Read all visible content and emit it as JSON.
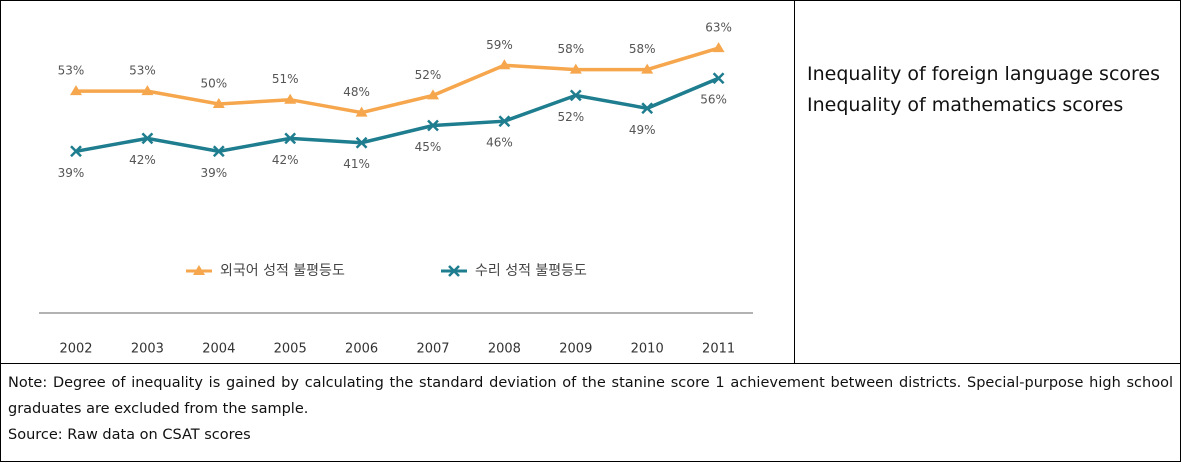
{
  "chart_data": {
    "type": "line",
    "categories": [
      "2002",
      "2003",
      "2004",
      "2005",
      "2006",
      "2007",
      "2008",
      "2009",
      "2010",
      "2011"
    ],
    "series": [
      {
        "name": "외국어 성적 불평등도",
        "color": "#f6a64c",
        "marker": "triangle",
        "values": [
          53,
          53,
          50,
          51,
          48,
          52,
          59,
          58,
          58,
          63
        ],
        "value_labels": [
          "53%",
          "53%",
          "50%",
          "51%",
          "48%",
          "52%",
          "59%",
          "58%",
          "58%",
          "63%"
        ]
      },
      {
        "name": "수리 성적 불평등도",
        "color": "#1e7d8e",
        "marker": "x",
        "values": [
          39,
          42,
          39,
          42,
          41,
          45,
          46,
          52,
          49,
          56
        ],
        "value_labels": [
          "39%",
          "42%",
          "39%",
          "42%",
          "41%",
          "45%",
          "46%",
          "52%",
          "49%",
          "56%"
        ]
      }
    ],
    "legend": "bottom"
  },
  "translations": [
    "Inequality of foreign language scores",
    "Inequality of mathematics scores"
  ],
  "notes": [
    "Note: Degree of inequality is gained by calculating the standard deviation of the stanine score 1 achievement between districts. Special-purpose high school graduates are excluded from the sample.",
    "Source: Raw data on CSAT scores"
  ]
}
